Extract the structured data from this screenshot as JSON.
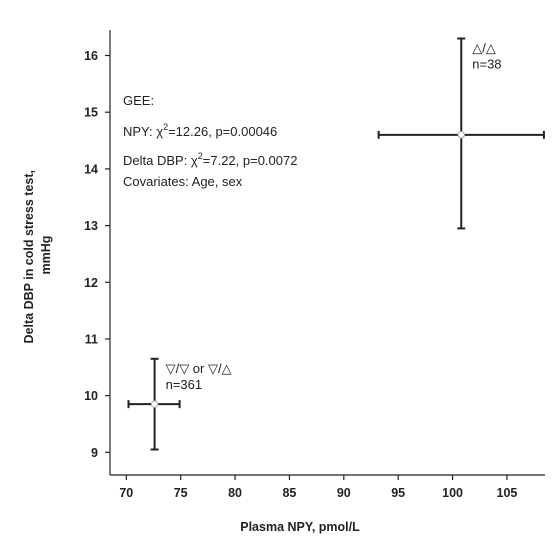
{
  "chart_data": {
    "type": "scatter",
    "title": "",
    "xlabel": "Plasma NPY, pmol/L",
    "ylabel_lines": [
      "Delta DBP in cold stress test,",
      "mmHg"
    ],
    "xlim": [
      68.5,
      108.5
    ],
    "ylim": [
      8.6,
      16.45
    ],
    "x_ticks": [
      70,
      75,
      80,
      85,
      90,
      95,
      100,
      105
    ],
    "y_ticks": [
      9,
      10,
      11,
      12,
      13,
      14,
      15,
      16
    ],
    "grid": false,
    "colors": {
      "marker": "#222222",
      "axis": "#222222",
      "center": "#aaaaaa"
    },
    "points": [
      {
        "group_label": "▽/▽ or ▽/△",
        "n_label": "n=361",
        "x": 72.6,
        "y": 9.85,
        "x_err": [
          70.2,
          74.9
        ],
        "y_err": [
          9.05,
          10.65
        ]
      },
      {
        "group_label": "△/△",
        "n_label": "n=38",
        "x": 100.8,
        "y": 14.6,
        "x_err": [
          93.2,
          108.4
        ],
        "y_err": [
          12.95,
          16.3
        ]
      }
    ],
    "annotation": {
      "line1": "GEE:",
      "line2_prefix": "NPY: ",
      "line2_chi": "χ",
      "line2_sup": "2",
      "line2_rest": "=12.26, p=0.00046",
      "line3_prefix": "Delta DBP: ",
      "line3_chi": "χ",
      "line3_sup": "2",
      "line3_rest": "=7.22, p=0.0072",
      "line4": "Covariates: Age, sex"
    }
  }
}
